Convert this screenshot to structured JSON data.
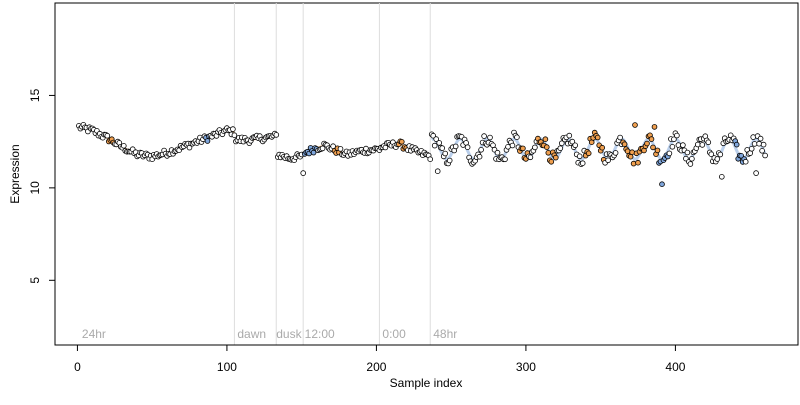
{
  "chart_data": {
    "type": "scatter",
    "title": "",
    "xlabel": "Sample index",
    "ylabel": "Expression",
    "xlim": [
      -15,
      482
    ],
    "ylim": [
      1.5,
      20
    ],
    "xticks": [
      0,
      100,
      200,
      300,
      400
    ],
    "yticks": [
      5,
      10,
      15
    ],
    "grid": false,
    "legend": "none",
    "colors": {
      "points_edge": "#000000",
      "orange": "#f0a050",
      "blue": "#7fa6dc",
      "fit_orange": "#f0b070",
      "fit_blue": "#a9c3e6",
      "vline": "#dddddd",
      "annotation": "#aaaaaa",
      "axis": "#000000"
    },
    "vlines": [
      105,
      133,
      151,
      202,
      236
    ],
    "annotations": [
      {
        "label": "24hr",
        "x": 3
      },
      {
        "label": "dawn",
        "x": 107
      },
      {
        "label": "dusk",
        "x": 133
      },
      {
        "label": "12:00",
        "x": 152
      },
      {
        "label": "0:00",
        "x": 204
      },
      {
        "label": "48hr",
        "x": 238
      }
    ],
    "segments": [
      {
        "name": "24hr",
        "x_start": 1,
        "x_end": 105,
        "knots": [
          [
            1,
            13.3
          ],
          [
            10,
            13.1
          ],
          [
            20,
            12.7
          ],
          [
            30,
            12.2
          ],
          [
            40,
            11.8
          ],
          [
            50,
            11.7
          ],
          [
            60,
            11.9
          ],
          [
            70,
            12.2
          ],
          [
            80,
            12.5
          ],
          [
            90,
            12.8
          ],
          [
            100,
            13.1
          ],
          [
            105,
            13.0
          ]
        ]
      },
      {
        "name": "dawn",
        "x_start": 106,
        "x_end": 133,
        "knots": [
          [
            106,
            12.6
          ],
          [
            115,
            12.6
          ],
          [
            125,
            12.7
          ],
          [
            133,
            12.8
          ]
        ]
      },
      {
        "name": "dusk",
        "x_start": 134,
        "x_end": 151,
        "knots": [
          [
            134,
            11.8
          ],
          [
            142,
            11.6
          ],
          [
            151,
            11.7
          ]
        ]
      },
      {
        "name": "12:00",
        "x_start": 152,
        "x_end": 202,
        "knots": [
          [
            152,
            11.9
          ],
          [
            165,
            12.3
          ],
          [
            180,
            11.8
          ],
          [
            190,
            12.0
          ],
          [
            202,
            12.1
          ]
        ]
      },
      {
        "name": "0:00",
        "x_start": 203,
        "x_end": 236,
        "knots": [
          [
            203,
            12.2
          ],
          [
            215,
            12.4
          ],
          [
            225,
            12.0
          ],
          [
            236,
            11.7
          ]
        ]
      },
      {
        "name": "48hr",
        "x_start": 237,
        "x_end": 460,
        "period": 18,
        "mean": 12.1,
        "amplitude": 0.55
      }
    ],
    "highlights": [
      {
        "x_start": 21,
        "x_end": 24,
        "color": "orange"
      },
      {
        "x_start": 86,
        "x_end": 88,
        "color": "blue"
      },
      {
        "x_start": 152,
        "x_end": 160,
        "color": "blue"
      },
      {
        "x_start": 172,
        "x_end": 175,
        "color": "orange"
      },
      {
        "x_start": 215,
        "x_end": 220,
        "color": "orange"
      },
      {
        "x_start": 296,
        "x_end": 301,
        "color": "orange"
      },
      {
        "x_start": 308,
        "x_end": 320,
        "color": "orange"
      },
      {
        "x_start": 340,
        "x_end": 352,
        "color": "orange"
      },
      {
        "x_start": 365,
        "x_end": 388,
        "color": "orange"
      },
      {
        "x_start": 389,
        "x_end": 395,
        "color": "blue"
      },
      {
        "x_start": 440,
        "x_end": 446,
        "color": "blue"
      }
    ],
    "outliers": [
      {
        "x": 151,
        "y": 10.8
      },
      {
        "x": 241,
        "y": 10.9
      },
      {
        "x": 391,
        "y": 10.2
      },
      {
        "x": 431,
        "y": 10.6
      },
      {
        "x": 454,
        "y": 10.8
      },
      {
        "x": 373,
        "y": 13.4
      },
      {
        "x": 386,
        "y": 13.3
      }
    ]
  }
}
